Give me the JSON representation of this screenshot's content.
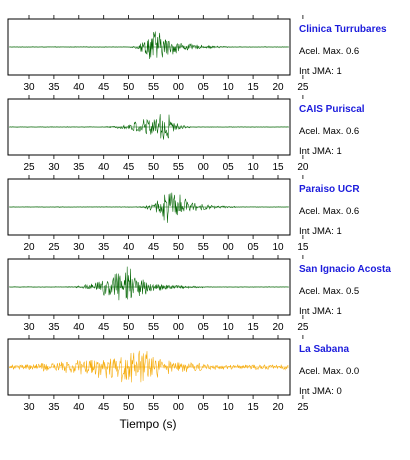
{
  "chart_data": {
    "type": "line",
    "xlabel": "Tiempo (s)",
    "grid": false,
    "panels": [
      {
        "station": "Clinica Turrubares",
        "accel_label": "Acel. Max. 0.6",
        "int_label": "Int JMA: 1",
        "color": "#006400",
        "tick_labels": [
          "30",
          "35",
          "40",
          "45",
          "50",
          "55",
          "00",
          "05",
          "10",
          "15",
          "20",
          "25"
        ],
        "onset_tick": 4.0,
        "peak_tick": 5.0,
        "duration_ticks": 4.0,
        "relative_peak": 0.95,
        "noise_level": 0.02
      },
      {
        "station": "CAIS Puriscal",
        "accel_label": "Acel. Max. 0.6",
        "int_label": "Int JMA: 1",
        "color": "#006400",
        "tick_labels": [
          "25",
          "30",
          "35",
          "40",
          "45",
          "50",
          "55",
          "00",
          "05",
          "10",
          "15",
          "20"
        ],
        "onset_tick": 3.0,
        "peak_tick": 5.5,
        "duration_ticks": 3.5,
        "relative_peak": 0.95,
        "noise_level": 0.02
      },
      {
        "station": "Paraiso UCR",
        "accel_label": "Acel. Max. 0.6",
        "int_label": "Int JMA: 1",
        "color": "#006400",
        "tick_labels": [
          "20",
          "25",
          "30",
          "35",
          "40",
          "45",
          "50",
          "55",
          "00",
          "05",
          "10",
          "15"
        ],
        "onset_tick": 4.3,
        "peak_tick": 5.7,
        "duration_ticks": 4.0,
        "relative_peak": 0.9,
        "noise_level": 0.02
      },
      {
        "station": "San Ignacio Acosta",
        "accel_label": "Acel. Max. 0.5",
        "int_label": "Int JMA: 1",
        "color": "#006400",
        "tick_labels": [
          "30",
          "35",
          "40",
          "45",
          "50",
          "55",
          "00",
          "05",
          "10",
          "15",
          "20",
          "25"
        ],
        "onset_tick": 1.5,
        "peak_tick": 3.9,
        "duration_ticks": 5.5,
        "relative_peak": 0.95,
        "noise_level": 0.02
      },
      {
        "station": "La Sabana",
        "accel_label": "Acel. Max. 0.0",
        "int_label": "Int JMA: 0",
        "color": "#f5a800",
        "tick_labels": [
          "30",
          "35",
          "40",
          "45",
          "50",
          "55",
          "00",
          "05",
          "10",
          "15",
          "20",
          "25"
        ],
        "onset_tick": 0.0,
        "peak_tick": 4.5,
        "duration_ticks": 7.0,
        "relative_peak": 0.95,
        "noise_level": 0.18
      }
    ]
  }
}
